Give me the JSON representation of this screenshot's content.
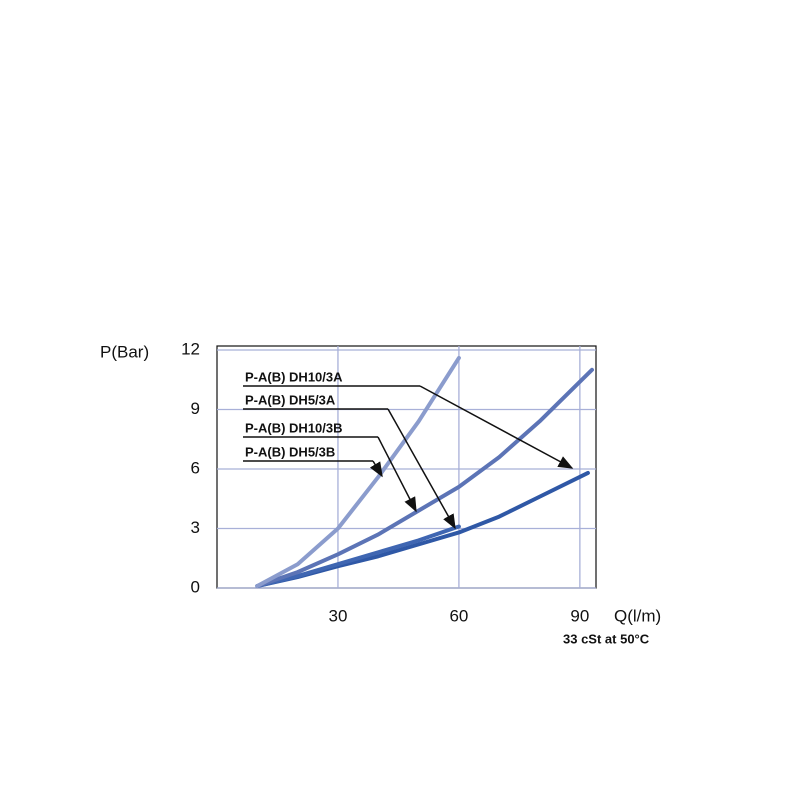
{
  "chart_data": {
    "type": "line",
    "y_label": "P(Bar)",
    "x_label": "Q(l/m)",
    "note": "33 cSt at 50°C",
    "xlim": [
      0,
      94
    ],
    "ylim": [
      0,
      12
    ],
    "xticks": [
      30,
      60,
      90
    ],
    "yticks": [
      0,
      3,
      6,
      9,
      12
    ],
    "grid": true,
    "series": [
      {
        "name": "P-A(B) DH10/3A",
        "color": "#2f58a6",
        "x": [
          10,
          20,
          30,
          40,
          50,
          60,
          70,
          80,
          92
        ],
        "values": [
          0.1,
          0.55,
          1.1,
          1.6,
          2.2,
          2.8,
          3.6,
          4.6,
          5.8
        ]
      },
      {
        "name": "P-A(B) DH5/3A",
        "color": "#3f66b2",
        "x": [
          10,
          20,
          30,
          40,
          50,
          60
        ],
        "values": [
          0.1,
          0.6,
          1.2,
          1.8,
          2.4,
          3.1
        ]
      },
      {
        "name": "P-A(B) DH10/3B",
        "color": "#5c74b6",
        "x": [
          10,
          20,
          30,
          40,
          50,
          60,
          70,
          80,
          93
        ],
        "values": [
          0.1,
          0.8,
          1.7,
          2.7,
          3.9,
          5.1,
          6.6,
          8.4,
          11
        ]
      },
      {
        "name": "P-A(B) DH5/3B",
        "color": "#8b9ccd",
        "x": [
          10,
          20,
          30,
          40,
          50,
          60
        ],
        "values": [
          0.1,
          1.2,
          3,
          5.6,
          8.4,
          11.6
        ]
      }
    ]
  }
}
